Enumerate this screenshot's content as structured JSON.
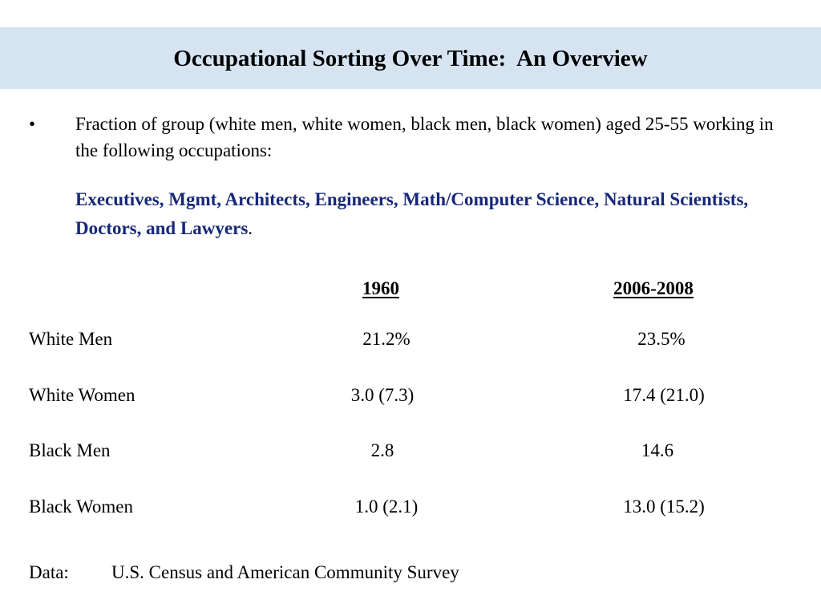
{
  "slide": {
    "title": "Occupational Sorting Over Time:  An Overview"
  },
  "intro": {
    "bullet": "•",
    "text": "Fraction of group (white men, white women, black men, black women) aged 25-55 working in the following occupations:"
  },
  "occupations": {
    "list": "Executives, Mgmt, Architects, Engineers, Math/Computer Science, Natural Scientists, Doctors, and Lawyers",
    "period": "."
  },
  "table": {
    "headers": [
      "1960",
      "2006-2008"
    ],
    "rows": [
      {
        "label": "White Men",
        "values": [
          "21.2%",
          "23.5%"
        ]
      },
      {
        "label": "White Women",
        "values": [
          "3.0 (7.3)",
          "17.4 (21.0)"
        ]
      },
      {
        "label": "Black Men",
        "values": [
          "2.8",
          "14.6"
        ]
      },
      {
        "label": "Black Women",
        "values": [
          "1.0 (2.1)",
          "13.0 (15.2)"
        ]
      }
    ]
  },
  "source": {
    "label": "Data:",
    "text": "U.S. Census and American Community Survey"
  },
  "colors": {
    "title_band": "#d6e4f2",
    "highlight_text": "#17287a"
  }
}
